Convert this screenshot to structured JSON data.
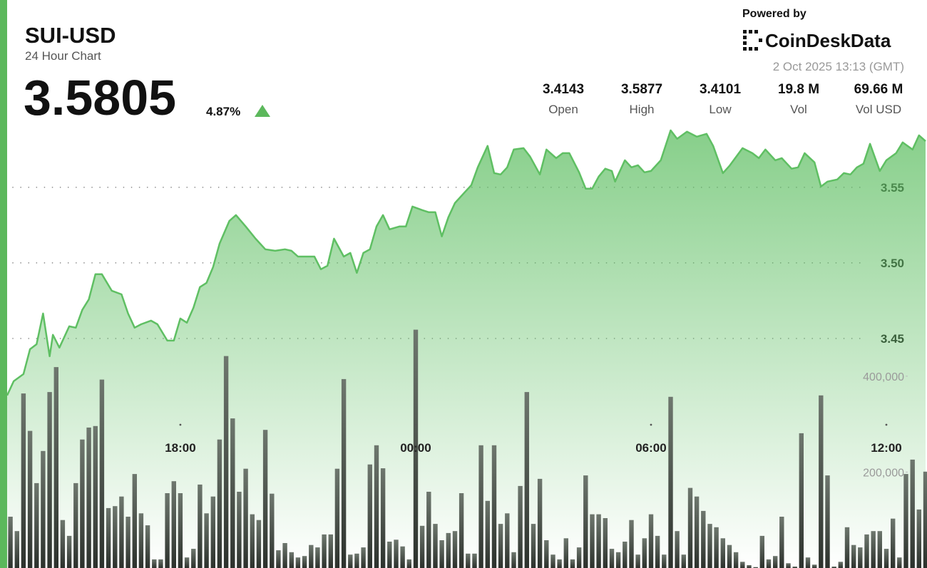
{
  "header": {
    "title": "SUI-USD",
    "subtitle": "24 Hour Chart",
    "price": "3.5805",
    "change": "4.87%",
    "powered_by": "Powered by",
    "brand": "CoinDeskData",
    "timestamp": "2 Oct 2025 13:13 (GMT)"
  },
  "stats": [
    {
      "value": "3.4143",
      "label": "Open"
    },
    {
      "value": "3.5877",
      "label": "High"
    },
    {
      "value": "3.4101",
      "label": "Low"
    },
    {
      "value": "19.8 M",
      "label": "Vol"
    },
    {
      "value": "69.66 M",
      "label": "Vol USD"
    }
  ],
  "chart_data": [
    {
      "type": "line",
      "color": "#5fbf63",
      "xlim": [
        815,
        2220
      ],
      "xticks": [
        {
          "value": 1080,
          "label": "18:00"
        },
        {
          "value": 1440,
          "label": "00:00"
        },
        {
          "value": 1800,
          "label": "06:00"
        },
        {
          "value": 2160,
          "label": "12:00"
        }
      ],
      "ylim": [
        3.3,
        3.59
      ],
      "yticks": [
        3.45,
        {
          "value": 3.5,
          "label": "3.50"
        },
        3.55
      ],
      "grid": true,
      "x": [
        815,
        825,
        840,
        850,
        860,
        870,
        880,
        885,
        895,
        910,
        920,
        930,
        940,
        950,
        960,
        975,
        990,
        1000,
        1010,
        1020,
        1035,
        1045,
        1060,
        1070,
        1080,
        1090,
        1100,
        1110,
        1120,
        1130,
        1140,
        1155,
        1165,
        1180,
        1195,
        1210,
        1225,
        1240,
        1250,
        1260,
        1285,
        1295,
        1305,
        1315,
        1330,
        1340,
        1350,
        1360,
        1370,
        1380,
        1390,
        1400,
        1415,
        1425,
        1435,
        1450,
        1460,
        1470,
        1480,
        1490,
        1500,
        1515,
        1525,
        1535,
        1550,
        1560,
        1570,
        1580,
        1590,
        1605,
        1615,
        1630,
        1640,
        1655,
        1665,
        1675,
        1690,
        1700,
        1710,
        1720,
        1730,
        1740,
        1745,
        1760,
        1770,
        1780,
        1790,
        1800,
        1815,
        1830,
        1840,
        1855,
        1870,
        1885,
        1895,
        1910,
        1920,
        1940,
        1955,
        1965,
        1975,
        1990,
        2000,
        2015,
        2025,
        2035,
        2050,
        2060,
        2070,
        2085,
        2095,
        2105,
        2115,
        2125,
        2135,
        2150,
        2160,
        2175,
        2185,
        2200,
        2210,
        2220
      ],
      "values": [
        3.4123,
        3.4217,
        3.4264,
        3.4429,
        3.4462,
        3.4665,
        3.4382,
        3.4524,
        3.4439,
        3.458,
        3.4571,
        3.4689,
        3.4759,
        3.4925,
        3.4925,
        3.4816,
        3.4792,
        3.4665,
        3.4571,
        3.4594,
        3.4618,
        3.4594,
        3.4486,
        3.4486,
        3.4632,
        3.4604,
        3.4703,
        3.484,
        3.4868,
        3.4972,
        3.5127,
        3.5278,
        3.5316,
        3.5241,
        3.516,
        3.509,
        3.508,
        3.509,
        3.508,
        3.5042,
        3.5042,
        3.4958,
        3.4981,
        3.516,
        3.5042,
        3.5066,
        3.4934,
        3.5066,
        3.509,
        3.5241,
        3.5316,
        3.5222,
        3.5241,
        3.5241,
        3.5373,
        3.5349,
        3.5335,
        3.5335,
        3.5175,
        3.5302,
        3.5396,
        3.5467,
        3.5514,
        3.5632,
        3.5774,
        3.5594,
        3.5585,
        3.5632,
        3.575,
        3.5759,
        3.5703,
        3.5585,
        3.575,
        3.5693,
        3.5726,
        3.5726,
        3.5599,
        3.5491,
        3.5491,
        3.5571,
        3.5623,
        3.5608,
        3.5538,
        3.5679,
        3.5632,
        3.5646,
        3.5599,
        3.5608,
        3.5679,
        3.5877,
        3.5821,
        3.5868,
        3.5835,
        3.5854,
        3.5774,
        3.5594,
        3.5642,
        3.5759,
        3.5726,
        3.5693,
        3.575,
        3.5679,
        3.5693,
        3.5623,
        3.5632,
        3.5726,
        3.5665,
        3.5505,
        3.5538,
        3.5552,
        3.5594,
        3.5585,
        3.5632,
        3.5656,
        3.5788,
        3.5608,
        3.5679,
        3.5726,
        3.5797,
        3.575,
        3.5844,
        3.5805
      ]
    },
    {
      "type": "bar",
      "color": "#6e776e",
      "xlim": [
        815,
        2220
      ],
      "ylim": [
        0,
        920000
      ],
      "yticks": [
        {
          "value": 200000,
          "label": "200,000"
        },
        {
          "value": 400000,
          "label": "400,000"
        }
      ],
      "x": [
        820,
        830,
        840,
        850,
        860,
        870,
        880,
        890,
        900,
        910,
        920,
        930,
        940,
        950,
        960,
        970,
        980,
        990,
        1000,
        1010,
        1020,
        1030,
        1040,
        1050,
        1060,
        1070,
        1080,
        1090,
        1100,
        1110,
        1120,
        1130,
        1140,
        1150,
        1160,
        1170,
        1180,
        1190,
        1200,
        1210,
        1220,
        1230,
        1240,
        1250,
        1260,
        1270,
        1280,
        1290,
        1300,
        1310,
        1320,
        1330,
        1340,
        1350,
        1360,
        1370,
        1380,
        1390,
        1400,
        1410,
        1420,
        1430,
        1440,
        1450,
        1460,
        1470,
        1480,
        1490,
        1500,
        1510,
        1520,
        1530,
        1540,
        1550,
        1560,
        1570,
        1580,
        1590,
        1600,
        1610,
        1620,
        1630,
        1640,
        1650,
        1660,
        1670,
        1680,
        1690,
        1700,
        1710,
        1720,
        1730,
        1740,
        1750,
        1760,
        1770,
        1780,
        1790,
        1800,
        1810,
        1820,
        1830,
        1840,
        1850,
        1860,
        1870,
        1880,
        1890,
        1900,
        1910,
        1920,
        1930,
        1940,
        1950,
        1960,
        1970,
        1980,
        1990,
        2000,
        2010,
        2020,
        2030,
        2040,
        2050,
        2060,
        2070,
        2080,
        2090,
        2100,
        2110,
        2120,
        2130,
        2140,
        2150,
        2160,
        2170,
        2180,
        2190,
        2200,
        2210,
        2220
      ],
      "values": [
        107000,
        77000,
        364000,
        286000,
        177000,
        244000,
        367000,
        419000,
        100000,
        67000,
        177000,
        268000,
        293000,
        296000,
        393000,
        125000,
        129000,
        149000,
        107000,
        196000,
        114000,
        89000,
        18000,
        18000,
        156000,
        181000,
        156000,
        22000,
        40000,
        174000,
        114000,
        149000,
        268000,
        442000,
        312000,
        159000,
        207000,
        112000,
        100000,
        288000,
        155000,
        37000,
        52000,
        33000,
        22000,
        25000,
        48000,
        43000,
        70000,
        70000,
        207000,
        394000,
        28000,
        30000,
        43000,
        216000,
        256000,
        208000,
        55000,
        59000,
        45000,
        18000,
        497000,
        88000,
        159000,
        92000,
        58000,
        73000,
        77000,
        156000,
        30000,
        30000,
        256000,
        140000,
        256000,
        92000,
        114000,
        33000,
        171000,
        367000,
        92000,
        186000,
        58000,
        28000,
        18000,
        62000,
        18000,
        43000,
        193000,
        112000,
        112000,
        104000,
        40000,
        33000,
        55000,
        100000,
        28000,
        62000,
        112000,
        67000,
        28000,
        357000,
        77000,
        28000,
        167000,
        149000,
        119000,
        92000,
        85000,
        62000,
        48000,
        33000,
        13000,
        6000,
        2000,
        67000,
        18000,
        25000,
        107000,
        10000,
        3000,
        281000,
        22000,
        7000,
        360000,
        193000,
        3000,
        13000,
        85000,
        48000,
        43000,
        70000,
        77000,
        77000,
        40000,
        103000,
        22000,
        196000,
        226000,
        122000,
        201000
      ]
    }
  ]
}
